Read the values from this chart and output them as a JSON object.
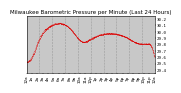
{
  "title": "Milwaukee Barometric Pressure per Minute (Last 24 Hours)",
  "line_color": "#dd0000",
  "bg_color": "#ffffff",
  "plot_bg": "#c8c8c8",
  "grid_color": "#888888",
  "ylim": [
    29.35,
    30.25
  ],
  "yticks": [
    29.4,
    29.5,
    29.6,
    29.7,
    29.8,
    29.9,
    30.0,
    30.1,
    30.2
  ],
  "num_points": 1440,
  "pressure_profile": [
    0.1,
    0.11,
    0.13,
    0.16,
    0.2,
    0.25,
    0.31,
    0.38,
    0.45,
    0.52,
    0.58,
    0.63,
    0.67,
    0.71,
    0.74,
    0.77,
    0.79,
    0.81,
    0.83,
    0.84,
    0.855,
    0.865,
    0.875,
    0.882,
    0.886,
    0.888,
    0.887,
    0.883,
    0.877,
    0.868,
    0.856,
    0.84,
    0.82,
    0.797,
    0.771,
    0.742,
    0.71,
    0.677,
    0.642,
    0.607,
    0.575,
    0.548,
    0.528,
    0.515,
    0.51,
    0.512,
    0.52,
    0.532,
    0.547,
    0.562,
    0.577,
    0.591,
    0.604,
    0.616,
    0.627,
    0.637,
    0.646,
    0.654,
    0.661,
    0.667,
    0.672,
    0.676,
    0.679,
    0.681,
    0.682,
    0.682,
    0.681,
    0.679,
    0.676,
    0.672,
    0.667,
    0.661,
    0.654,
    0.646,
    0.637,
    0.627,
    0.616,
    0.604,
    0.591,
    0.577,
    0.562,
    0.547,
    0.532,
    0.518,
    0.505,
    0.494,
    0.485,
    0.478,
    0.474,
    0.471,
    0.47,
    0.47,
    0.471,
    0.472,
    0.472,
    0.47,
    0.44,
    0.39,
    0.31,
    0.2
  ],
  "p_low": 29.44,
  "p_high": 30.215,
  "noise_std": 0.003,
  "title_fontsize": 4.0,
  "tick_fontsize": 3.0,
  "line_width": 0.5,
  "marker_size": 0.8,
  "num_gridlines": 10
}
